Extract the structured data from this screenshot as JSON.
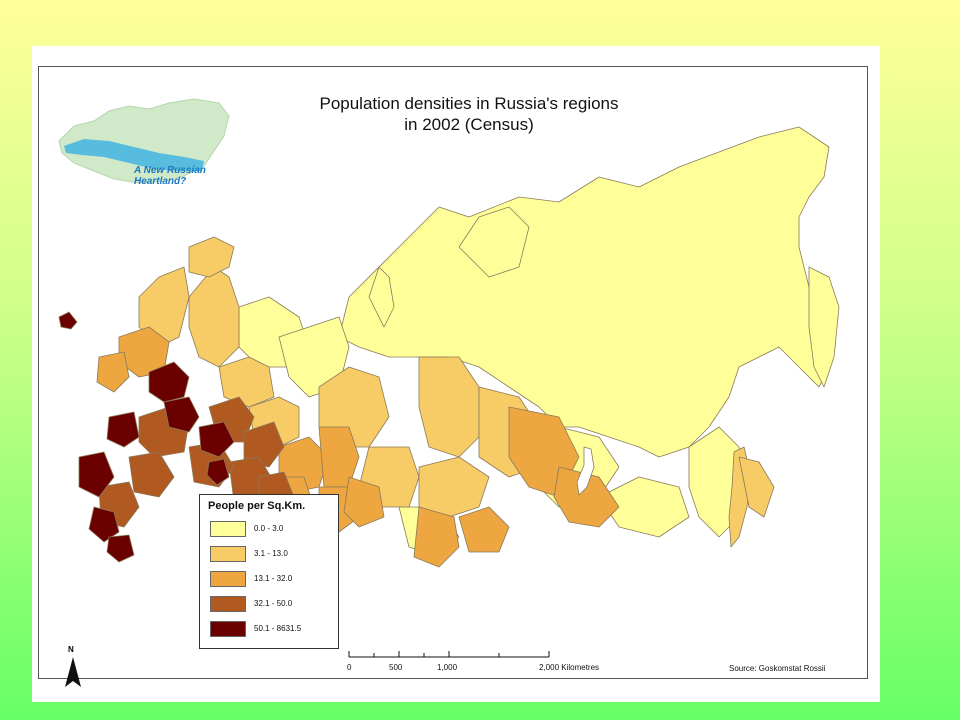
{
  "title": {
    "line1": "Population densities in Russia's regions",
    "line2": "in 2002 (Census)"
  },
  "inset": {
    "caption_line1": "A New Russian",
    "caption_line2": "Heartland?"
  },
  "legend": {
    "title": "People per Sq.Km.",
    "classes": [
      {
        "label": "0.0 - 3.0",
        "color": "#ffff99"
      },
      {
        "label": "3.1 - 13.0",
        "color": "#f7cc66"
      },
      {
        "label": "13.1 - 32.0",
        "color": "#eda640"
      },
      {
        "label": "32.1 - 50.0",
        "color": "#b05a22"
      },
      {
        "label": "50.1 - 8631.5",
        "color": "#6b0000"
      }
    ]
  },
  "scale_bar": {
    "labels": [
      "0",
      "500",
      "1,000",
      "2,000 Kilometres"
    ]
  },
  "north_arrow": {
    "label": "N"
  },
  "source": "Source: Goskomstat Rossii",
  "colors": {
    "background_top": "#ffff99",
    "background_bottom": "#66ff66",
    "region_border": "#8a7a5a"
  }
}
